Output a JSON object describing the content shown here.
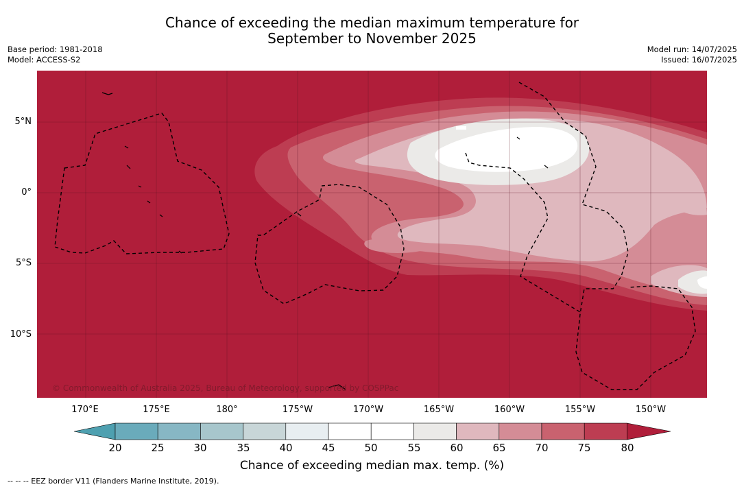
{
  "title": {
    "line1": "Chance of exceeding the median maximum temperature for",
    "line2": "September to November 2025"
  },
  "meta": {
    "base_period": "Base period: 1981-2018",
    "model": "Model: ACCESS-S2",
    "model_run": "Model run: 14/07/2025",
    "issued": "Issued: 16/07/2025"
  },
  "map": {
    "background_color": "#b01e3a",
    "copyright": "© Commonwealth of Australia 2025, Bureau of Meteorology, supported by COSPPac",
    "longitude_labels": [
      "170°E",
      "175°E",
      "180°",
      "175°W",
      "170°W",
      "165°W",
      "160°W",
      "155°W",
      "150°W"
    ],
    "latitude_labels": [
      "5°N",
      "0°",
      "5°S",
      "10°S"
    ]
  },
  "colorbar": {
    "ticks": [
      "20",
      "25",
      "30",
      "35",
      "40",
      "45",
      "50",
      "55",
      "60",
      "65",
      "70",
      "75",
      "80"
    ],
    "colors": {
      "below_20": "#4ea0b0",
      "20_25": "#6aabbb",
      "25_30": "#87b7c4",
      "30_35": "#a7c6cc",
      "35_40": "#c8d6d8",
      "40_45": "#e8eef1",
      "45_50": "#ffffff",
      "50_55": "#ffffff",
      "55_60": "#ebeae8",
      "60_65": "#dfb8be",
      "65_70": "#d48c96",
      "70_75": "#c9626f",
      "75_80": "#bd3d52",
      "above_80": "#b01e3a"
    },
    "label": "Chance of exceeding median max. temp. (%)"
  },
  "footnote": "--  --  -- EEZ border V11 (Flanders Marine Institute, 2019)."
}
